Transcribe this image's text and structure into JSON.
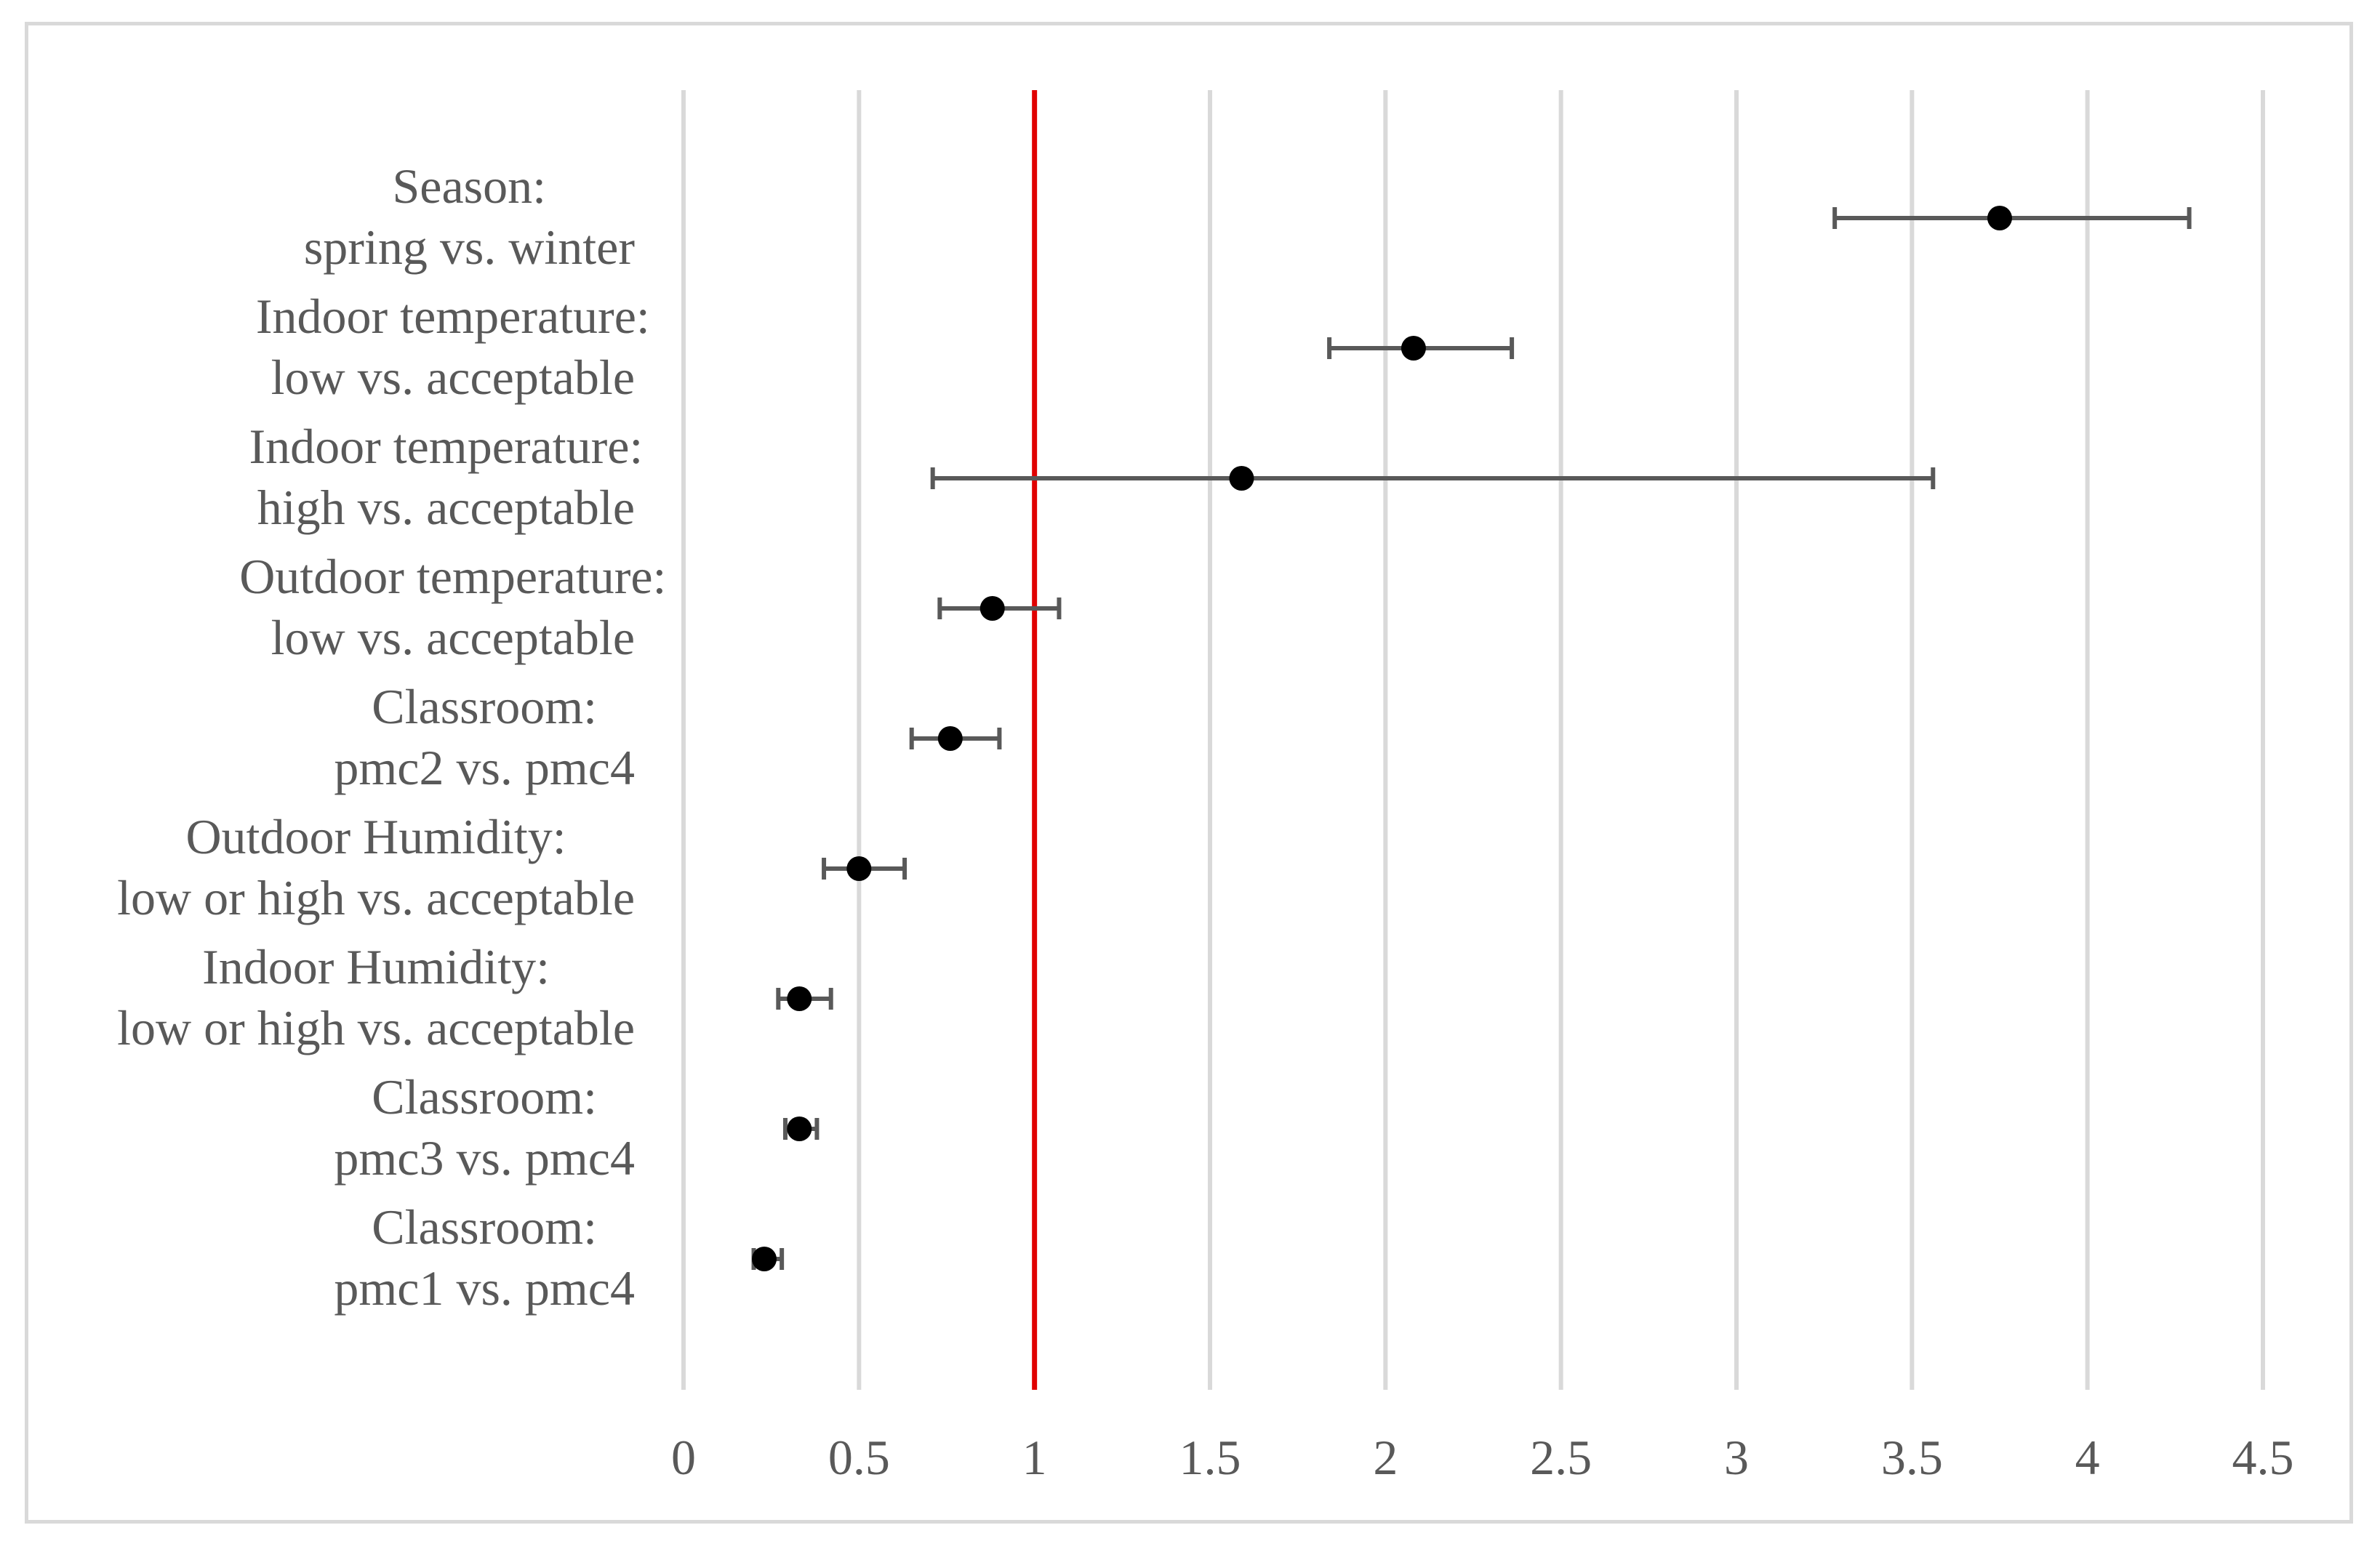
{
  "chart_data": {
    "type": "scatter",
    "subtype": "forest-plot",
    "title": "",
    "xlabel": "",
    "ylabel": "",
    "xlim": [
      0,
      4.5
    ],
    "xticks": [
      "0",
      "0.5",
      "1",
      "1.5",
      "2",
      "2.5",
      "3",
      "3.5",
      "4",
      "4.5"
    ],
    "xtick_values": [
      0,
      0.5,
      1,
      1.5,
      2,
      2.5,
      3,
      3.5,
      4,
      4.5
    ],
    "grid": "vertical",
    "reference_line": {
      "x": 1,
      "color": "#e00000"
    },
    "marker_color": "#000000",
    "errorbar_color": "#595959",
    "gridline_color": "#d9d9d9",
    "rows": [
      {
        "label_line1": "Season:",
        "label_line2": "spring vs. winter",
        "estimate": 3.75,
        "lower": 3.28,
        "upper": 4.29
      },
      {
        "label_line1": "Indoor temperature:",
        "label_line2": "low  vs. acceptable",
        "estimate": 2.08,
        "lower": 1.84,
        "upper": 2.36
      },
      {
        "label_line1": "Indoor temperature:",
        "label_line2": "high  vs. acceptable",
        "estimate": 1.59,
        "lower": 0.71,
        "upper": 3.56
      },
      {
        "label_line1": "Outdoor temperature:",
        "label_line2": "low vs. acceptable",
        "estimate": 0.88,
        "lower": 0.73,
        "upper": 1.07
      },
      {
        "label_line1": "Classroom:",
        "label_line2": "pmc2 vs. pmc4",
        "estimate": 0.76,
        "lower": 0.65,
        "upper": 0.9
      },
      {
        "label_line1": "Outdoor Humidity:",
        "label_line2": "low or high vs. acceptable",
        "estimate": 0.5,
        "lower": 0.4,
        "upper": 0.63
      },
      {
        "label_line1": "Indoor Humidity:",
        "label_line2": "low or high vs. acceptable",
        "estimate": 0.33,
        "lower": 0.27,
        "upper": 0.42
      },
      {
        "label_line1": "Classroom:",
        "label_line2": "pmc3 vs. pmc4",
        "estimate": 0.33,
        "lower": 0.29,
        "upper": 0.38
      },
      {
        "label_line1": "Classroom:",
        "label_line2": "pmc1 vs. pmc4",
        "estimate": 0.23,
        "lower": 0.2,
        "upper": 0.28
      }
    ]
  }
}
